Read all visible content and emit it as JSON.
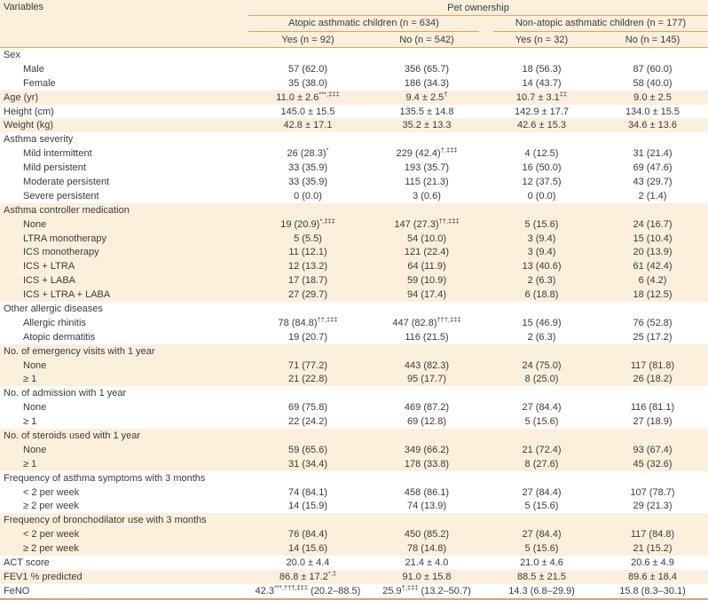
{
  "colors": {
    "row_band": "#fcf0dd",
    "rule_orange": "#efa14b",
    "text": "#3a3a3a",
    "row_white": "#ffffff"
  },
  "header": {
    "variables_label": "Variables",
    "group_label": "Pet ownership",
    "subgroups": [
      "Atopic asthmatic children (n = 634)",
      "Non-atopic asthmatic children (n = 177)"
    ],
    "columns": [
      "Yes (n = 92)",
      "No (n = 542)",
      "Yes (n = 32)",
      "No (n = 145)"
    ]
  },
  "table": {
    "groups": [
      {
        "label": "Sex",
        "rows": [
          {
            "label": "Male",
            "cells": [
              "57 (62.0)",
              "356 (65.7)",
              "18 (56.3)",
              "87 (60.0)"
            ]
          },
          {
            "label": "Female",
            "cells": [
              "35 (38.0)",
              "186 (34.3)",
              "14 (43.7)",
              "58 (40.0)"
            ]
          }
        ]
      },
      {
        "label": "Age (yr)",
        "cells": [
          "11.0 ± 2.6^{***,‡‡‡}",
          "9.4 ± 2.5^{†}",
          "10.7 ± 3.1^{‡‡}",
          "9.0 ± 2.5"
        ]
      },
      {
        "label": "Height (cm)",
        "cells": [
          "145.0 ± 15.5",
          "135.5 ± 14.8",
          "142.9 ± 17.7",
          "134.0 ± 15.5"
        ]
      },
      {
        "label": "Weight (kg)",
        "cells": [
          "42.8 ± 17.1",
          "35.2 ± 13.3",
          "42.6 ± 15.3",
          "34.6 ± 13.6"
        ]
      },
      {
        "label": "Asthma severity",
        "rows": [
          {
            "label": "Mild intermittent",
            "cells": [
              "26 (28.3)^{*}",
              "229 (42.4)^{†,‡‡‡}",
              "4 (12.5)",
              "31 (21.4)"
            ]
          },
          {
            "label": "Mild persistent",
            "cells": [
              "33 (35.9)",
              "193 (35.7)",
              "16 (50.0)",
              "69 (47.6)"
            ]
          },
          {
            "label": "Moderate persistent",
            "cells": [
              "33 (35.9)",
              "115 (21.3)",
              "12 (37.5)",
              "43 (29.7)"
            ]
          },
          {
            "label": "Severe persistent",
            "cells": [
              "0 (0.0)",
              "3 (0.6)",
              "0 (0.0)",
              "2 (1.4)"
            ]
          }
        ]
      },
      {
        "label": "Asthma controller medication",
        "rows": [
          {
            "label": "None",
            "cells": [
              "19 (20.9)^{*,‡‡‡}",
              "147 (27.3)^{††,‡‡‡}",
              "5 (15.6)",
              "24 (16.7)"
            ]
          },
          {
            "label": "LTRA monotherapy",
            "cells": [
              "5 (5.5)",
              "54 (10.0)",
              "3 (9.4)",
              "15 (10.4)"
            ]
          },
          {
            "label": "ICS monotherapy",
            "cells": [
              "11 (12.1)",
              "121 (22.4)",
              "3 (9.4)",
              "20 (13.9)"
            ]
          },
          {
            "label": "ICS + LTRA",
            "cells": [
              "12 (13.2)",
              "64 (11.9)",
              "13 (40.6)",
              "61 (42.4)"
            ]
          },
          {
            "label": "ICS + LABA",
            "cells": [
              "17 (18.7)",
              "59 (10.9)",
              "2 (6.3)",
              "6 (4.2)"
            ]
          },
          {
            "label": "ICS + LTRA + LABA",
            "cells": [
              "27 (29.7)",
              "94 (17.4)",
              "6 (18.8)",
              "18 (12.5)"
            ]
          }
        ]
      },
      {
        "label": "Other allergic diseases",
        "rows": [
          {
            "label": "Allergic rhinitis",
            "cells": [
              "78 (84.8)^{††,‡‡‡}",
              "447 (82.8)^{†††,‡‡‡}",
              "15 (46.9)",
              "76 (52.8)"
            ]
          },
          {
            "label": "Atopic dermatitis",
            "cells": [
              "19 (20.7)",
              "116 (21.5)",
              "2 (6.3)",
              "25 (17.2)"
            ]
          }
        ]
      },
      {
        "label": "No. of emergency visits with 1 year",
        "rows": [
          {
            "label": "None",
            "cells": [
              "71 (77.2)",
              "443 (82.3)",
              "24 (75.0)",
              "117 (81.8)"
            ]
          },
          {
            "label": "≥ 1",
            "cells": [
              "21 (22.8)",
              "95 (17.7)",
              "8 (25.0)",
              "26 (18.2)"
            ]
          }
        ]
      },
      {
        "label": "No. of admission with 1 year",
        "rows": [
          {
            "label": "None",
            "cells": [
              "69 (75.8)",
              "469 (87.2)",
              "27 (84.4)",
              "116 (81.1)"
            ]
          },
          {
            "label": "≥ 1",
            "cells": [
              "22 (24.2)",
              "69 (12.8)",
              "5 (15.6)",
              "27 (18.9)"
            ]
          }
        ]
      },
      {
        "label": "No. of steroids used with 1 year",
        "rows": [
          {
            "label": "None",
            "cells": [
              "59 (65.6)",
              "349 (66.2)",
              "21 (72.4)",
              "93 (67.4)"
            ]
          },
          {
            "label": "≥ 1",
            "cells": [
              "31 (34.4)",
              "178 (33.8)",
              "8 (27.6)",
              "45 (32.6)"
            ]
          }
        ]
      },
      {
        "label": "Frequency of asthma symptoms with 3 months",
        "rows": [
          {
            "label": "< 2 per week",
            "cells": [
              "74 (84.1)",
              "458 (86.1)",
              "27 (84.4)",
              "107 (78.7)"
            ]
          },
          {
            "label": "≥ 2 per week",
            "cells": [
              "14 (15.9)",
              "74 (13.9)",
              "5 (15.6)",
              "29 (21.3)"
            ]
          }
        ]
      },
      {
        "label": "Frequency of bronchodilator use with 3 months",
        "rows": [
          {
            "label": "< 2 per week",
            "cells": [
              "76 (84.4)",
              "450 (85.2)",
              "27 (84.4)",
              "117 (84.8)"
            ]
          },
          {
            "label": "≥ 2 per week",
            "cells": [
              "14 (15.6)",
              "78 (14.8)",
              "5 (15.6)",
              "21 (15.2)"
            ]
          }
        ]
      },
      {
        "label": "ACT score",
        "cells": [
          "20.0 ± 4.4",
          "21.4 ± 4.0",
          "21.0 ± 4.6",
          "20.6 ± 4.9"
        ]
      },
      {
        "label": "FEV1 % predicted",
        "cells": [
          "86.8 ± 17.2^{*,‡}",
          "91.0 ± 15.8",
          "88.5 ± 21.5",
          "89.6 ± 18.4"
        ]
      },
      {
        "label": "FeNO",
        "cells": [
          "42.3^{***,†††,‡‡‡} (20.2–88.5)",
          "25.9^{†,‡‡‡} (13.2–50.7)",
          "14.3 (6.8–29.9)",
          "15.8 (8.3–30.1)"
        ]
      }
    ]
  }
}
